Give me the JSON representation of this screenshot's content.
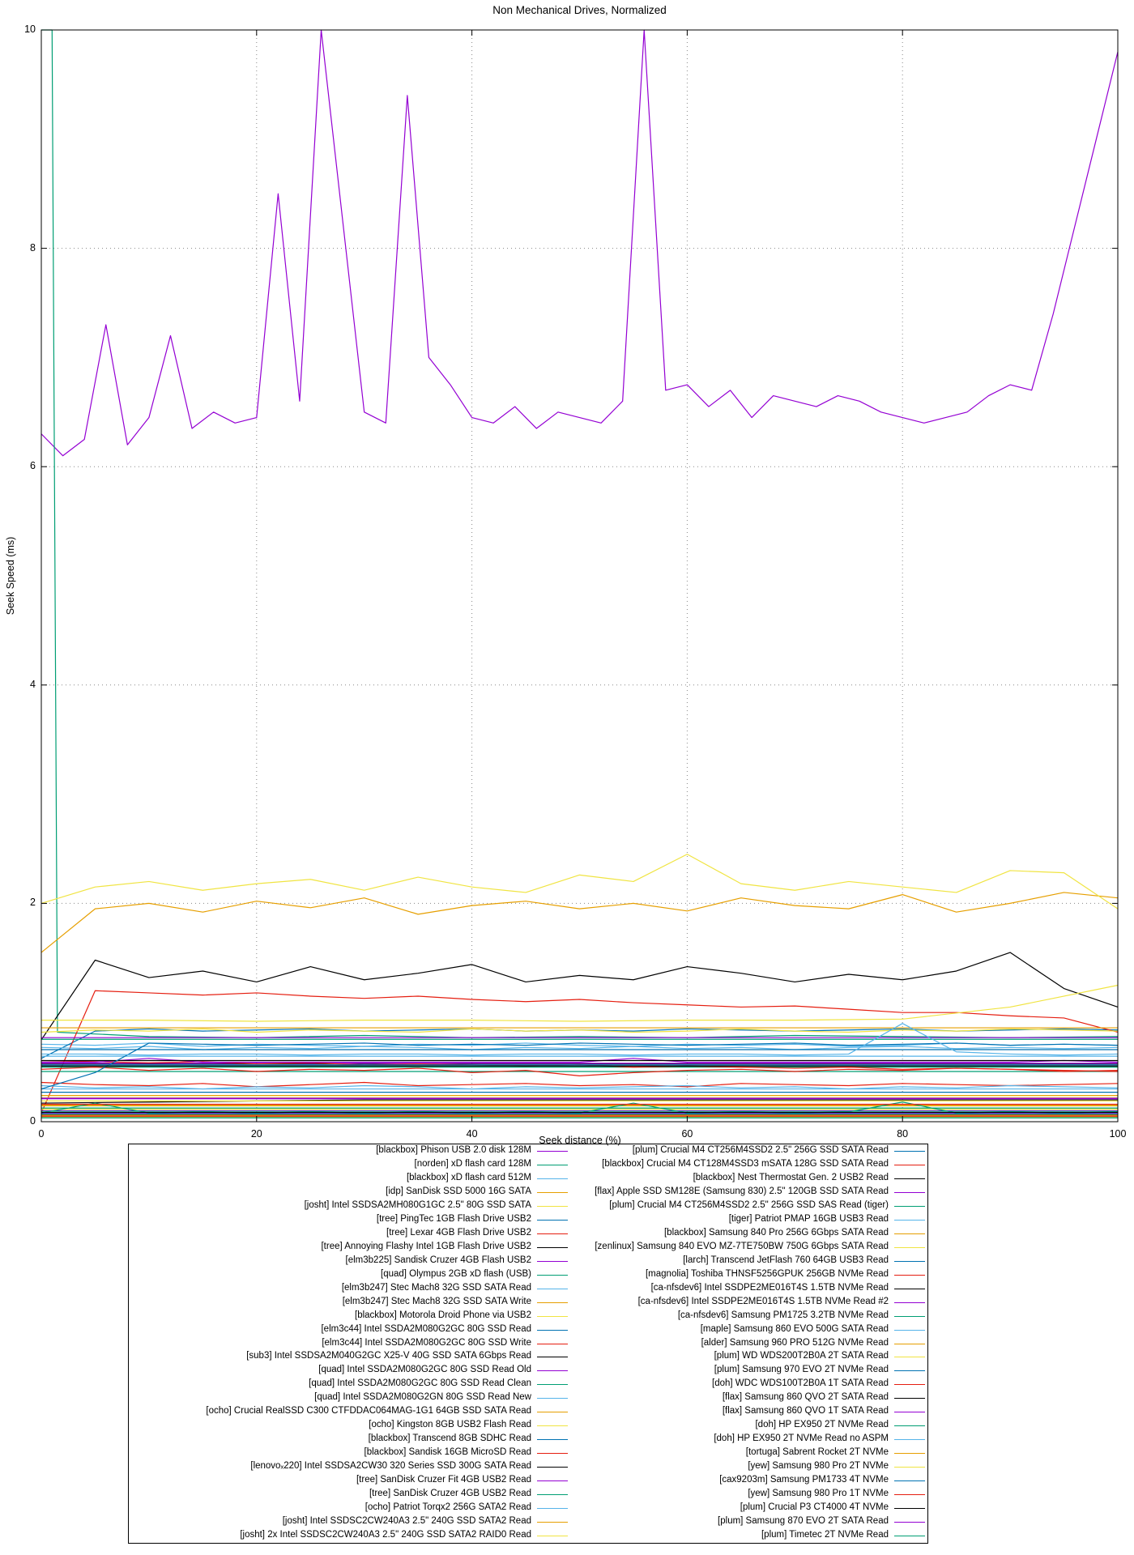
{
  "chart_data": {
    "type": "line",
    "title": "Non Mechanical Drives, Normalized",
    "xlabel": "Seek distance (%)",
    "ylabel": "Seek Speed (ms)",
    "xlim": [
      0,
      100
    ],
    "ylim": [
      0,
      10
    ],
    "x_ticks": [
      0,
      20,
      40,
      60,
      80,
      100
    ],
    "y_ticks": [
      0,
      2,
      4,
      6,
      8,
      10
    ],
    "grid": "dotted",
    "legend_position": "below-plot, boxed, two columns",
    "palette": [
      "#9400d3",
      "#009e73",
      "#56b4e9",
      "#e69f00",
      "#f0e442",
      "#0072b2",
      "#e51e10",
      "#000000"
    ],
    "series": [
      {
        "name": "[blackbox] Phison USB 2.0 disk 128M",
        "y": [
          6.3,
          6.1,
          6.25,
          7.3,
          6.2,
          6.45,
          7.2,
          6.35,
          6.5,
          6.4,
          6.45,
          8.5,
          6.6,
          10.8,
          8.25,
          6.5,
          6.4,
          9.4,
          7.0,
          6.75,
          6.45,
          6.4,
          6.55,
          6.35,
          6.5,
          6.45,
          6.4,
          6.6,
          11,
          6.7,
          6.75,
          6.55,
          6.7,
          6.45,
          6.65,
          6.6,
          6.55,
          6.65,
          6.6,
          6.5,
          6.45,
          6.4,
          6.45,
          6.5,
          6.65,
          6.75,
          6.7,
          7.4,
          8.2,
          9.0,
          9.8
        ]
      },
      {
        "name": "[norden] xD flash card 128M",
        "x": [
          0,
          1,
          1.5,
          10,
          20,
          30,
          40,
          50,
          60,
          70,
          80,
          90,
          100
        ],
        "y": [
          12,
          12,
          0.82,
          0.78,
          0.77,
          0.79,
          0.77,
          0.78,
          0.77,
          0.79,
          0.78,
          0.77,
          0.78
        ]
      },
      {
        "name": "[blackbox] xD flash card 512M",
        "y": [
          0.71,
          0.7,
          0.72,
          0.69,
          0.71,
          0.7,
          0.69,
          0.71,
          0.7,
          0.72,
          0.7,
          0.69,
          0.71,
          0.7,
          0.71,
          0.69,
          0.7,
          0.72,
          0.7,
          0.71,
          0.7
        ]
      },
      {
        "name": "[idp] SanDisk SSD 5000 16G SATA",
        "y": [
          1.55,
          1.95,
          2.0,
          1.92,
          2.02,
          1.96,
          2.05,
          1.9,
          1.98,
          2.02,
          1.95,
          2.0,
          1.93,
          2.05,
          1.98,
          1.95,
          2.08,
          1.92,
          2.0,
          2.1,
          2.05
        ]
      },
      {
        "name": "[josht] Intel SSDSA2MH080G1GC 2.5\" 80G SSD SATA",
        "y": [
          2.0,
          2.15,
          2.2,
          2.12,
          2.18,
          2.22,
          2.12,
          2.24,
          2.15,
          2.1,
          2.26,
          2.2,
          2.45,
          2.18,
          2.12,
          2.2,
          2.15,
          2.1,
          2.3,
          2.28,
          1.95
        ]
      },
      {
        "name": "[tree] PingTec 1GB Flash Drive USB2",
        "y": [
          0.58,
          0.83,
          0.85,
          0.83,
          0.84,
          0.85,
          0.83,
          0.84,
          0.85,
          0.83,
          0.84,
          0.83,
          0.85,
          0.84,
          0.83,
          0.84,
          0.85,
          0.83,
          0.84,
          0.85,
          0.84
        ]
      },
      {
        "name": "[tree] Lexar 4GB Flash Drive USB2",
        "y": [
          0.08,
          1.2,
          1.18,
          1.16,
          1.18,
          1.15,
          1.13,
          1.15,
          1.12,
          1.1,
          1.12,
          1.09,
          1.07,
          1.05,
          1.06,
          1.03,
          1.0,
          1.0,
          0.97,
          0.95,
          0.82
        ]
      },
      {
        "name": "[tree] Annoying Flashy Intel 1GB Flash Drive USB2",
        "y": [
          0.75,
          1.48,
          1.32,
          1.38,
          1.28,
          1.42,
          1.3,
          1.36,
          1.44,
          1.28,
          1.34,
          1.3,
          1.42,
          1.36,
          1.28,
          1.35,
          1.3,
          1.38,
          1.55,
          1.22,
          1.05
        ]
      },
      {
        "name": "[elm3b225] Sandisk Cruzer 4GB Flash USB2",
        "y": [
          0.77
        ]
      },
      {
        "name": "[quad] Olympus 2GB xD flash (USB)",
        "y": [
          0.46
        ]
      },
      {
        "name": "[elm3b247] Stec Mach8 32G SSD SATA Read",
        "y": [
          0.68,
          0.67,
          0.69,
          0.66,
          0.68,
          0.67,
          0.69,
          0.68,
          0.66,
          0.68,
          0.67,
          0.69,
          0.67,
          0.68,
          0.66,
          0.68,
          0.69,
          0.67,
          0.68,
          0.67,
          0.68
        ]
      },
      {
        "name": "[elm3b247] Stec Mach8 32G SSD SATA Write",
        "y": [
          0.86
        ]
      },
      {
        "name": "[blackbox] Motorola Droid Phone via USB2",
        "y": [
          0.82,
          0.84,
          0.83,
          0.85,
          0.82,
          0.84,
          0.83,
          0.82,
          0.85,
          0.83,
          0.84,
          0.82,
          0.83,
          0.85,
          0.83,
          0.82,
          0.84,
          0.83,
          0.85,
          0.84,
          0.83
        ]
      },
      {
        "name": "[elm3c44] Intel SSDA2M080G2GC 80G SSD Read",
        "y": [
          0.27
        ]
      },
      {
        "name": "[elm3c44] Intel SSDA2M080G2GC 80G SSD Write",
        "y": [
          0.36,
          0.34,
          0.33,
          0.35,
          0.32,
          0.34,
          0.36,
          0.33,
          0.34,
          0.35,
          0.33,
          0.34,
          0.32,
          0.35,
          0.34,
          0.33,
          0.35,
          0.34,
          0.33,
          0.34,
          0.35
        ]
      },
      {
        "name": "[sub3] Intel SSDSA2M040G2GC X25-V 40G SSD SATA 6Gbps Read",
        "y": [
          0.53
        ]
      },
      {
        "name": "[quad] Intel SSDA2M080G2GC 80G SSD Read Old",
        "y": [
          0.535
        ]
      },
      {
        "name": "[quad] Intel SSDA2M080G2GC 80G SSD Read Clean",
        "y": [
          0.5
        ]
      },
      {
        "name": "[quad] Intel SSDA2M080G2GN 80G SSD Read New",
        "y": [
          0.3
        ]
      },
      {
        "name": "[ocho] Crucial RealSSD C300 CTFDDAC064MAG-1G1 64GB SSD SATA Read",
        "y": [
          0.145
        ]
      },
      {
        "name": "[ocho] Kingston 8GB USB2 Flash Read",
        "y": [
          0.93,
          0.93,
          0.92,
          0.93,
          0.93,
          0.92,
          0.93,
          0.93,
          0.94,
          1.05,
          1.25
        ]
      },
      {
        "name": "[blackbox] Transcend 8GB SDHC Read",
        "y": [
          0.66
        ]
      },
      {
        "name": "[blackbox] Sandisk 16GB MicroSD Read",
        "y": [
          0.56,
          0.55,
          0.54,
          0.55,
          0.53,
          0.54,
          0.52,
          0.53,
          0.52,
          0.51,
          0.52,
          0.5,
          0.51,
          0.5,
          0.49,
          0.5,
          0.48,
          0.49,
          0.48,
          0.47,
          0.46
        ]
      },
      {
        "name": "[lenovoₓ220] Intel SSDSA2CW30 320 Series SSD 300G SATA Read",
        "y": [
          0.17,
          0.18,
          0.19,
          0.2,
          0.2,
          0.2,
          0.2,
          0.2,
          0.2,
          0.2,
          0.2
        ]
      },
      {
        "name": "[tree] SanDisk Cruzer Fit 4GB USB2 Read",
        "y": [
          0.545,
          0.545,
          0.58,
          0.545,
          0.545,
          0.545,
          0.545,
          0.545,
          0.545,
          0.545,
          0.545,
          0.58,
          0.545,
          0.545,
          0.545,
          0.545,
          0.545,
          0.545,
          0.545,
          0.56,
          0.545
        ]
      },
      {
        "name": "[tree] SanDisk Cruzer 4GB USB2 Read",
        "y": [
          0.755
        ]
      },
      {
        "name": "[ocho] Patriot Torqx2 256G SATA2 Read",
        "y": [
          0.33,
          0.31,
          0.32,
          0.3,
          0.32,
          0.31,
          0.33,
          0.32,
          0.3,
          0.32,
          0.31,
          0.32,
          0.33,
          0.31,
          0.32,
          0.3,
          0.32,
          0.31,
          0.33,
          0.32,
          0.31
        ]
      },
      {
        "name": "[josht] Intel SSDSC2CW240A3 2.5\" 240G SSD SATA2 Read",
        "y": [
          0.15
        ]
      },
      {
        "name": "[josht] 2x Intel SSDSC2CW240A3 2.5\" 240G SSD SATA2 RAID0 Read",
        "y": [
          0.115
        ]
      },
      {
        "name": "[plum] Crucial M4 CT256M4SSD2 2.5\" 256G SSD SATA Read",
        "y": [
          0.52
        ]
      },
      {
        "name": "[blackbox] Crucial M4 CT128M4SSD3 mSATA 128G SSD SATA Read",
        "y": [
          0.48,
          0.5,
          0.47,
          0.49,
          0.46,
          0.48,
          0.47,
          0.49,
          0.45,
          0.47,
          0.42,
          0.45,
          0.47,
          0.48,
          0.46,
          0.48,
          0.47,
          0.49,
          0.48,
          0.46,
          0.47
        ]
      },
      {
        "name": "[blackbox] Nest Thermostat Gen. 2 USB2 Read",
        "y": [
          0.56
        ]
      },
      {
        "name": "[flax] Apple SSD SM128E (Samsung 830) 2.5\" 120GB SSD SATA Read",
        "y": [
          0.1
        ]
      },
      {
        "name": "[plum] Crucial M4 CT256M4SSD2 2.5\" 256G SSD SAS Read (tiger)",
        "y": [
          0.125
        ]
      },
      {
        "name": "[tiger] Patriot PMAP 16GB USB3 Read",
        "y": [
          0.6
        ]
      },
      {
        "name": "[blackbox] Samsung 840 Pro 256G 6Gbps SATA Read",
        "y": [
          0.24
        ]
      },
      {
        "name": "[zenlinux] Samsung 840 EVO MZ-7TE750BW 750G 6Gbps SATA Read",
        "y": [
          0.22
        ]
      },
      {
        "name": "[larch] Transcend JetFlash 760 64GB USB3 Read",
        "y": [
          0.3,
          0.45,
          0.72,
          0.71,
          0.7,
          0.71,
          0.72,
          0.7,
          0.71,
          0.7,
          0.72,
          0.71,
          0.7,
          0.71,
          0.72,
          0.7,
          0.71,
          0.72,
          0.7,
          0.71,
          0.7
        ]
      },
      {
        "name": "[magnolia] Toshiba THNSF5256GPUK 256GB NVMe Read",
        "y": [
          0.055
        ]
      },
      {
        "name": "[ca-nfsdev6] Intel SSDPE2ME016T4S 1.5TB NVMe Read",
        "y": [
          0.065
        ]
      },
      {
        "name": "[ca-nfsdev6] Intel SSDPE2ME016T4S 1.5TB NVMe Read #2",
        "y": [
          0.075
        ]
      },
      {
        "name": "[ca-nfsdev6] Samsung PM1725 3.2TB NVMe Read",
        "y": [
          0.08,
          0.17,
          0.08,
          0.09,
          0.08,
          0.09,
          0.08,
          0.09,
          0.08,
          0.09,
          0.08,
          0.17,
          0.08,
          0.09,
          0.08,
          0.09,
          0.18,
          0.08,
          0.09,
          0.08,
          0.09
        ]
      },
      {
        "name": "[maple] Samsung 860 EVO 500G SATA Read",
        "y": [
          0.62,
          0.62,
          0.61,
          0.62,
          0.62,
          0.61,
          0.62,
          0.62,
          0.61,
          0.62,
          0.62,
          0.61,
          0.62,
          0.62,
          0.61,
          0.62,
          0.9,
          0.64,
          0.62,
          0.61,
          0.62
        ]
      },
      {
        "name": "[alder] Samsung 960 PRO 512G NVMe Read",
        "y": [
          0.045
        ]
      },
      {
        "name": "[plum] WD WDS200T2B0A 2T SATA Read",
        "y": [
          0.19
        ]
      },
      {
        "name": "[plum] Samsung 970 EVO 2T NVMe Read",
        "y": [
          0.04
        ]
      },
      {
        "name": "[doh] WDC WDS100T2B0A 1T SATA Read",
        "y": [
          0.16
        ]
      },
      {
        "name": "[flax] Samsung 860 QVO 2T SATA Read",
        "y": [
          0.51
        ]
      },
      {
        "name": "[flax] Samsung 860 QVO 1T SATA Read",
        "y": [
          0.21
        ]
      },
      {
        "name": "[doh] HP EX950 2T NVMe Read",
        "y": [
          0.035
        ]
      },
      {
        "name": "[doh] HP EX950 2T NVMe Read no ASPM",
        "y": [
          0.05
        ]
      },
      {
        "name": "[tortuga] Sabrent Rocket 2T NVMe",
        "y": [
          0.06
        ]
      },
      {
        "name": "[yew] Samsung 980 Pro 2T NVMe",
        "y": [
          0.045
        ]
      },
      {
        "name": "[cax9203m] Samsung PM1733 4T NVMe",
        "y": [
          0.07
        ]
      },
      {
        "name": "[yew] Samsung 980 Pro 1T NVMe",
        "y": [
          0.05
        ]
      },
      {
        "name": "[plum] Crucial P3 CT4000 4T NVMe",
        "y": [
          0.085
        ]
      },
      {
        "name": "[plum] Samsung 870 EVO 2T SATA Read",
        "y": [
          0.215
        ]
      },
      {
        "name": "[plum] Timetec 2T NVMe Read",
        "y": [
          0.095
        ]
      }
    ]
  }
}
